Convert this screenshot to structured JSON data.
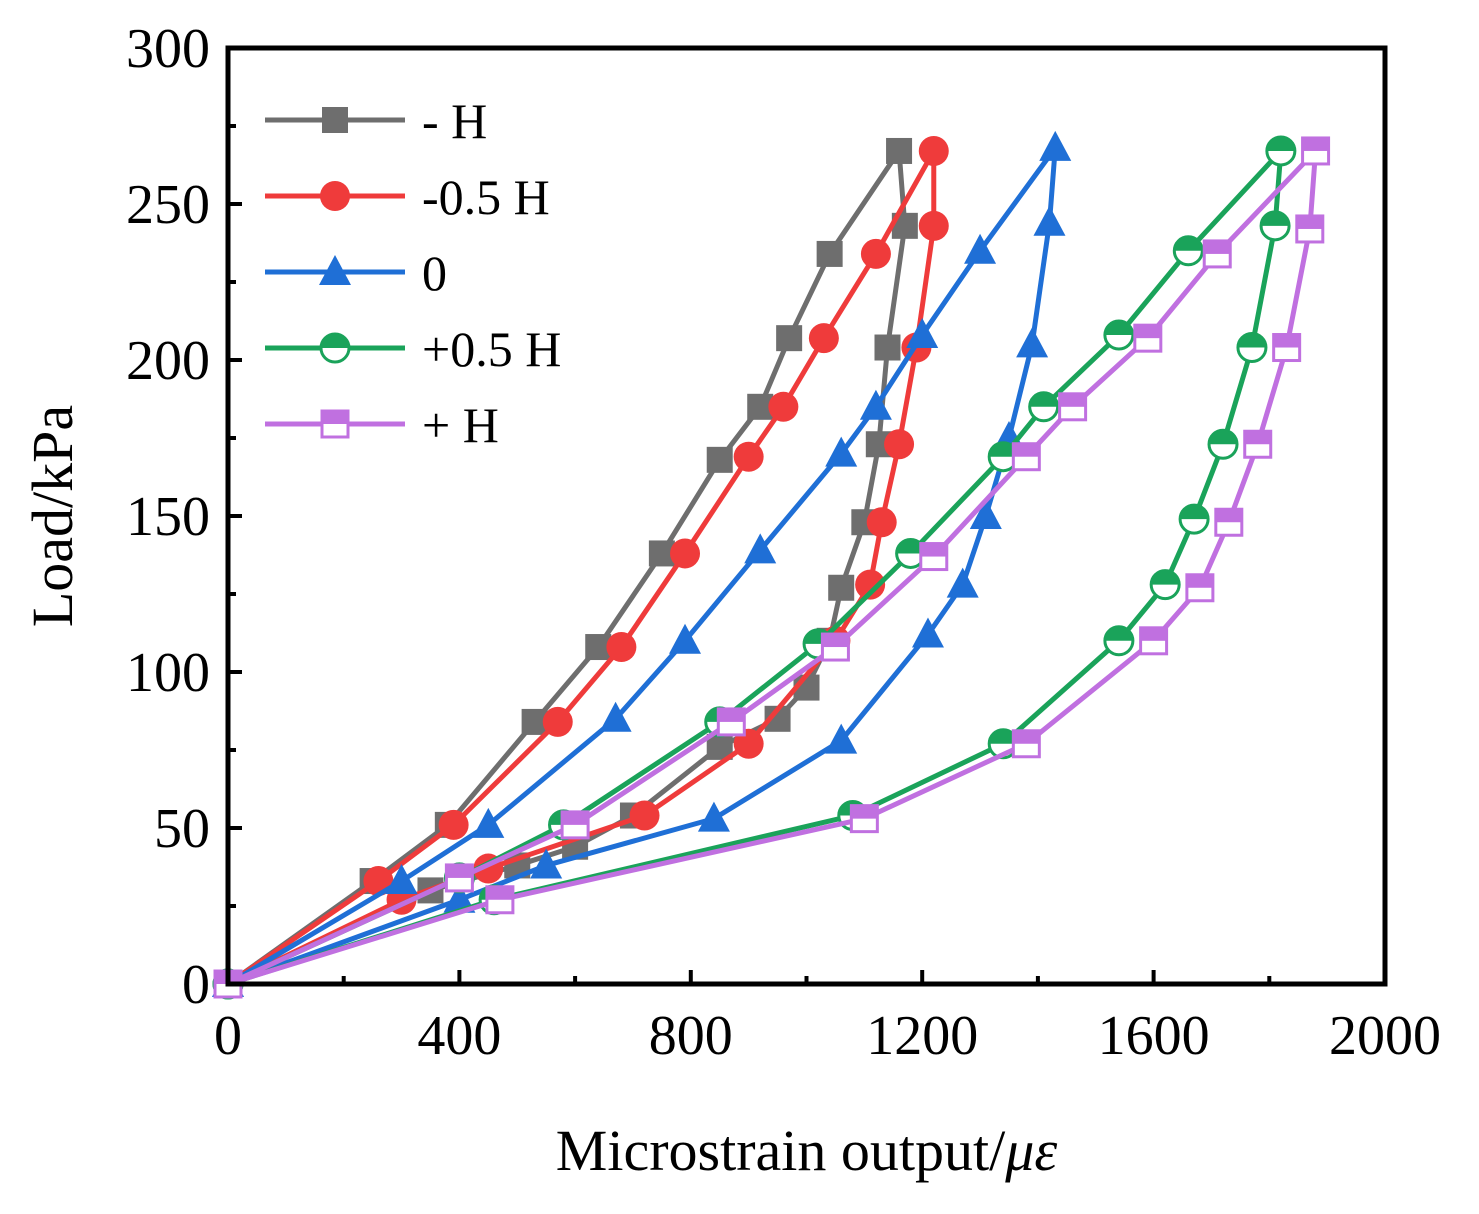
{
  "chart_data": {
    "type": "line",
    "title": "",
    "xlabel": "Microstrain output/",
    "xlabel_symbol": "με",
    "ylabel": "Load/kPa",
    "xlim": [
      0,
      2000
    ],
    "ylim": [
      0,
      300
    ],
    "xticks": [
      0,
      400,
      800,
      1200,
      1600,
      2000
    ],
    "yticks": [
      0,
      50,
      100,
      150,
      200,
      250,
      300
    ],
    "grid": false,
    "legend_position": "top-left",
    "series": [
      {
        "name": "- H",
        "color": "#6e6e6e",
        "marker": "square-filled",
        "x": [
          0,
          250,
          380,
          530,
          640,
          750,
          850,
          920,
          970,
          1040,
          1160,
          1170,
          1140,
          1125,
          1100,
          1060,
          1040,
          1000,
          950,
          850,
          700,
          600,
          500,
          350,
          0
        ],
        "y": [
          0,
          33,
          51,
          84,
          108,
          138,
          168,
          185,
          207,
          234,
          267,
          243,
          204,
          173,
          148,
          127,
          110,
          95,
          85,
          76,
          54,
          44,
          38,
          30,
          0
        ]
      },
      {
        "name": "-0.5 H",
        "color": "#ef3b3b",
        "marker": "circle-filled",
        "x": [
          0,
          260,
          390,
          570,
          680,
          790,
          900,
          960,
          1030,
          1120,
          1220,
          1220,
          1190,
          1160,
          1130,
          1110,
          1050,
          900,
          720,
          450,
          300,
          0
        ],
        "y": [
          0,
          33,
          51,
          84,
          108,
          138,
          169,
          185,
          207,
          234,
          267,
          243,
          204,
          173,
          148,
          128,
          110,
          77,
          54,
          37,
          27,
          0
        ]
      },
      {
        "name": "0",
        "color": "#1f6fd6",
        "marker": "triangle-filled",
        "x": [
          0,
          300,
          450,
          670,
          790,
          920,
          1060,
          1120,
          1200,
          1300,
          1430,
          1420,
          1390,
          1350,
          1310,
          1270,
          1210,
          1060,
          840,
          550,
          400,
          0
        ],
        "y": [
          0,
          33,
          51,
          85,
          110,
          139,
          170,
          185,
          208,
          235,
          268,
          244,
          205,
          175,
          150,
          128,
          112,
          78,
          53,
          38,
          27,
          0
        ]
      },
      {
        "name": "+0.5 H",
        "color": "#1aa35a",
        "marker": "circle-half",
        "x": [
          0,
          400,
          580,
          850,
          1020,
          1180,
          1340,
          1410,
          1540,
          1660,
          1820,
          1810,
          1770,
          1720,
          1670,
          1620,
          1540,
          1340,
          1080,
          460,
          0
        ],
        "y": [
          0,
          34,
          51,
          84,
          109,
          138,
          169,
          185,
          208,
          235,
          267,
          243,
          204,
          173,
          149,
          128,
          110,
          77,
          54,
          27,
          0
        ]
      },
      {
        "name": "+ H",
        "color": "#c070e0",
        "marker": "square-half",
        "x": [
          0,
          400,
          600,
          870,
          1050,
          1220,
          1380,
          1460,
          1590,
          1710,
          1880,
          1870,
          1830,
          1780,
          1730,
          1680,
          1600,
          1380,
          1100,
          470,
          0
        ],
        "y": [
          0,
          34,
          51,
          84,
          108,
          137,
          169,
          185,
          207,
          234,
          267,
          242,
          204,
          173,
          148,
          127,
          110,
          77,
          53,
          27,
          0
        ]
      }
    ]
  }
}
